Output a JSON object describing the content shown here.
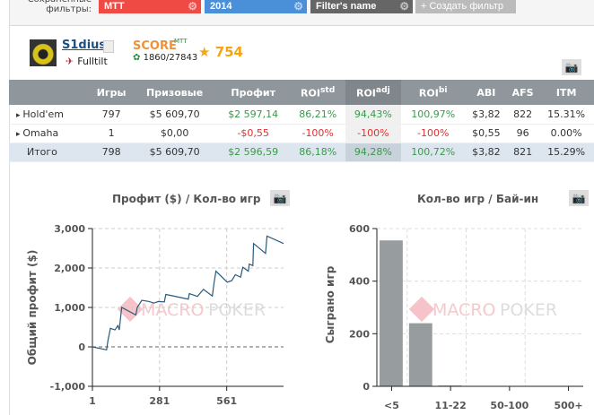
{
  "filters": {
    "label": "Сохраненные фильтры:",
    "chips": [
      {
        "label": "MTT",
        "color": "#f04a45"
      },
      {
        "label": "2014",
        "color": "#4a90d9"
      },
      {
        "label": "Filter's name",
        "color": "#666666"
      }
    ],
    "create_label": "+ Создать фильтр"
  },
  "profile": {
    "username": "S1dius",
    "room": "Fulltilt",
    "score_label": "SCORE",
    "score_sup": "MTT",
    "rank": "1860/27843",
    "stars": "754"
  },
  "table": {
    "headers": [
      "",
      "Игры",
      "Призовые",
      "Профит",
      "ROI",
      "ROI",
      "ROI",
      "ABI",
      "AFS",
      "ITM"
    ],
    "sups": [
      "std",
      "adj",
      "bi"
    ],
    "rows": [
      {
        "name": "Hold'em",
        "games": "797",
        "prizes": "$5 609,70",
        "profit": "$2 597,14",
        "roi_std": "86,21%",
        "roi_adj": "94,43%",
        "roi_bi": "100,97%",
        "abi": "$3,82",
        "afs": "822",
        "itm": "15.31%",
        "positive": true
      },
      {
        "name": "Omaha",
        "games": "1",
        "prizes": "$0,00",
        "profit": "-$0,55",
        "roi_std": "-100%",
        "roi_adj": "-100%",
        "roi_bi": "-100%",
        "abi": "$0,55",
        "afs": "96",
        "itm": "0.00%",
        "positive": false
      },
      {
        "name": "Итого",
        "games": "798",
        "prizes": "$5 609,70",
        "profit": "$2 596,59",
        "roi_std": "86,18%",
        "roi_adj": "94,28%",
        "roi_bi": "100,72%",
        "abi": "$3,82",
        "afs": "821",
        "itm": "15.29%",
        "positive": true
      }
    ]
  },
  "watermark": {
    "a": "MACRO",
    "b": "POKER"
  },
  "chart_data": [
    {
      "type": "line",
      "title": "Профит ($) / Кол-во игр",
      "xlabel": "",
      "ylabel": "Общий профит ($)",
      "xlim": [
        1,
        798
      ],
      "ylim": [
        -1000,
        3000
      ],
      "xticks": [
        "1",
        "281",
        "561"
      ],
      "yticks": [
        "3,000",
        "2,000",
        "1,000",
        "0",
        "-1,000"
      ],
      "grid": true,
      "color": "#2a5a7a",
      "x": [
        1,
        60,
        66,
        76,
        95,
        107,
        113,
        123,
        182,
        188,
        207,
        238,
        257,
        276,
        301,
        307,
        339,
        401,
        405,
        439,
        464,
        501,
        508,
        516,
        563,
        582,
        597,
        619,
        628,
        651,
        655,
        670,
        673,
        723,
        729,
        798
      ],
      "y": [
        0,
        -75,
        170,
        470,
        430,
        540,
        430,
        1000,
        810,
        1000,
        1180,
        1150,
        1110,
        1150,
        1140,
        1330,
        1290,
        1210,
        1350,
        1280,
        1460,
        1290,
        1610,
        1920,
        1640,
        1680,
        1830,
        1770,
        2020,
        1920,
        2100,
        2060,
        2620,
        2370,
        2810,
        2620
      ]
    },
    {
      "type": "bar",
      "title": "Кол-во игр / Бай-ин",
      "xlabel": "",
      "ylabel": "Сыграно игр",
      "ylim": [
        0,
        600
      ],
      "categories": [
        "<5",
        "",
        "11-22",
        "",
        "50-100",
        "",
        "500+"
      ],
      "values": [
        555,
        240,
        3,
        0,
        0,
        0,
        0
      ],
      "yticks": [
        "600",
        "400",
        "200",
        "0"
      ],
      "grid": true,
      "color": "#979c9f"
    }
  ]
}
